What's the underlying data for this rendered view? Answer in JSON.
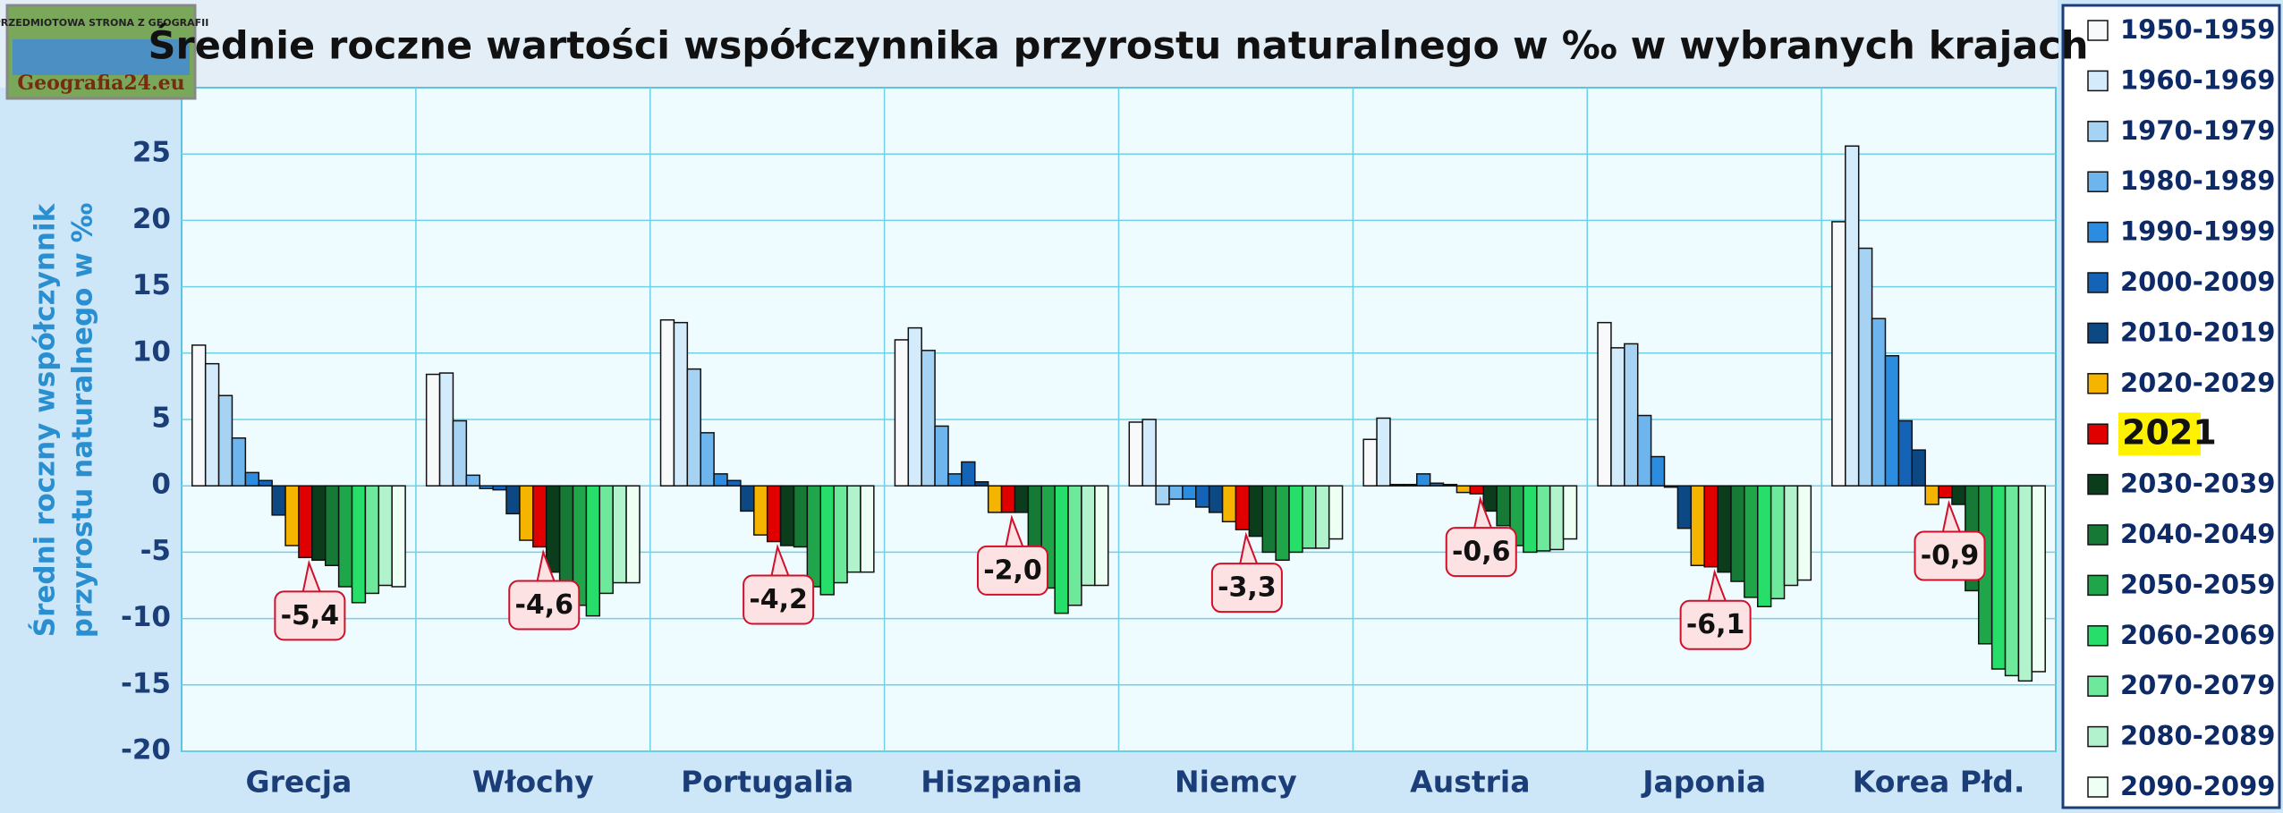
{
  "chart_data": {
    "type": "bar",
    "title": "Średnie roczne wartości współczynnika przyrostu naturalnego w ‰ w wybranych krajach",
    "ylabel": [
      "Średni roczny współczynnik",
      "przyrostu naturalnego w ‰"
    ],
    "logo": [
      "PRZEDMIOTOWA STRONA Z GEOGRAFII",
      "Geografia24.eu"
    ],
    "categories": [
      "Grecja",
      "Włochy",
      "Portugalia",
      "Hiszpania",
      "Niemcy",
      "Austria",
      "Japonia",
      "Korea Płd."
    ],
    "ylim": [
      -20,
      30
    ],
    "yticks": [
      -20,
      -15,
      -10,
      -5,
      0,
      5,
      10,
      15,
      20,
      25
    ],
    "grid": true,
    "legend": "right",
    "series": [
      {
        "name": "1950-1959",
        "color": "#f7f9fb",
        "values": [
          10.6,
          8.4,
          12.5,
          11.0,
          4.8,
          3.5,
          12.3,
          19.9
        ]
      },
      {
        "name": "1960-1969",
        "color": "#d4ebfc",
        "values": [
          9.2,
          8.5,
          12.3,
          11.9,
          5.0,
          5.1,
          10.4,
          25.6
        ]
      },
      {
        "name": "1970-1979",
        "color": "#a6d2f4",
        "values": [
          6.8,
          4.9,
          8.8,
          10.2,
          -1.4,
          0.1,
          10.7,
          17.9
        ]
      },
      {
        "name": "1980-1989",
        "color": "#6db5ec",
        "values": [
          3.6,
          0.8,
          4.0,
          4.5,
          -1.0,
          0.1,
          5.3,
          12.6
        ]
      },
      {
        "name": "1990-1999",
        "color": "#2b8ce0",
        "values": [
          1.0,
          -0.2,
          0.9,
          0.9,
          -1.0,
          0.9,
          2.2,
          9.8
        ]
      },
      {
        "name": "2000-2009",
        "color": "#1563b6",
        "values": [
          0.4,
          -0.3,
          0.4,
          1.8,
          -1.6,
          0.2,
          -0.1,
          4.9
        ]
      },
      {
        "name": "2010-2019",
        "color": "#0c4884",
        "values": [
          -2.2,
          -2.1,
          -1.9,
          0.3,
          -2.0,
          0.1,
          -3.2,
          2.7
        ]
      },
      {
        "name": "2020-2029",
        "color": "#f5b400",
        "values": [
          -4.5,
          -4.1,
          -3.7,
          -2.0,
          -2.7,
          -0.5,
          -6.0,
          -1.4
        ]
      },
      {
        "name": "2021",
        "color": "#e00000",
        "values": [
          -5.4,
          -4.6,
          -4.2,
          -2.0,
          -3.3,
          -0.6,
          -6.1,
          -0.9
        ],
        "value_labels": [
          "-5,4",
          "-4,6",
          "-4,2",
          "-2,0",
          "-3,3",
          "-0,6",
          "-6,1",
          "-0,9"
        ]
      },
      {
        "name": "2030-2039",
        "color": "#0b3d1d",
        "values": [
          -5.6,
          -6.5,
          -4.5,
          -2.0,
          -3.8,
          -1.9,
          -6.5,
          -1.4
        ]
      },
      {
        "name": "2040-2049",
        "color": "#167a36",
        "values": [
          -6.0,
          -9.0,
          -4.6,
          -5.0,
          -5.0,
          -3.0,
          -7.2,
          -7.9
        ]
      },
      {
        "name": "2050-2059",
        "color": "#1fa64a",
        "values": [
          -7.6,
          -9.0,
          -7.6,
          -7.7,
          -5.6,
          -4.5,
          -8.4,
          -11.9
        ]
      },
      {
        "name": "2060-2069",
        "color": "#26de69",
        "values": [
          -8.8,
          -9.8,
          -8.2,
          -9.6,
          -5.0,
          -5.0,
          -9.1,
          -13.8
        ]
      },
      {
        "name": "2070-2079",
        "color": "#6ee89a",
        "values": [
          -8.1,
          -8.1,
          -7.3,
          -9.0,
          -4.7,
          -4.9,
          -8.5,
          -14.3
        ]
      },
      {
        "name": "2080-2089",
        "color": "#b2f2cc",
        "values": [
          -7.5,
          -7.3,
          -6.5,
          -7.5,
          -4.7,
          -4.8,
          -7.5,
          -14.7
        ]
      },
      {
        "name": "2090-2099",
        "color": "#eefff4",
        "values": [
          -7.6,
          -7.3,
          -6.5,
          -7.5,
          -4.0,
          -4.0,
          -7.1,
          -14.0
        ]
      }
    ]
  }
}
